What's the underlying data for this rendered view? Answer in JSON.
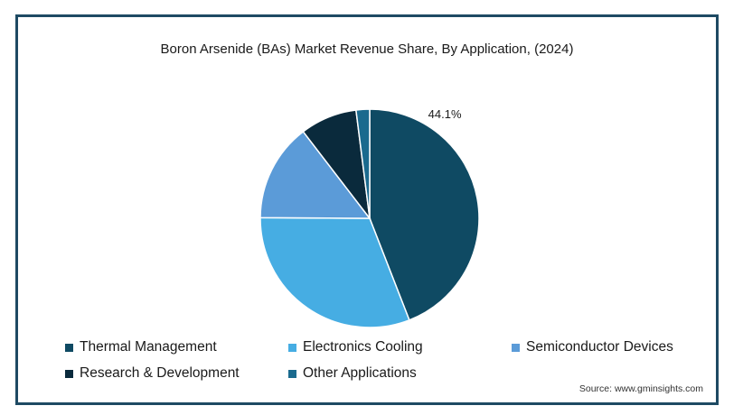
{
  "chart_data": {
    "type": "pie",
    "title": "Boron Arsenide (BAs) Market Revenue Share, By Application,  (2024)",
    "slices": [
      {
        "name": "Thermal Management",
        "value": 44.1,
        "label": "44.1%",
        "color": "#0f4a63"
      },
      {
        "name": "Electronics Cooling",
        "value": 31.0,
        "color": "#46ade3"
      },
      {
        "name": "Semiconductor Devices",
        "value": 14.5,
        "color": "#5b9bd8"
      },
      {
        "name": "Research & Development",
        "value": 8.4,
        "color": "#0a2a3c"
      },
      {
        "name": "Other Applications",
        "value": 2.0,
        "color": "#1a6a8e"
      }
    ],
    "legend_placement": "bottom"
  },
  "source": "Source: www.gminsights.com"
}
